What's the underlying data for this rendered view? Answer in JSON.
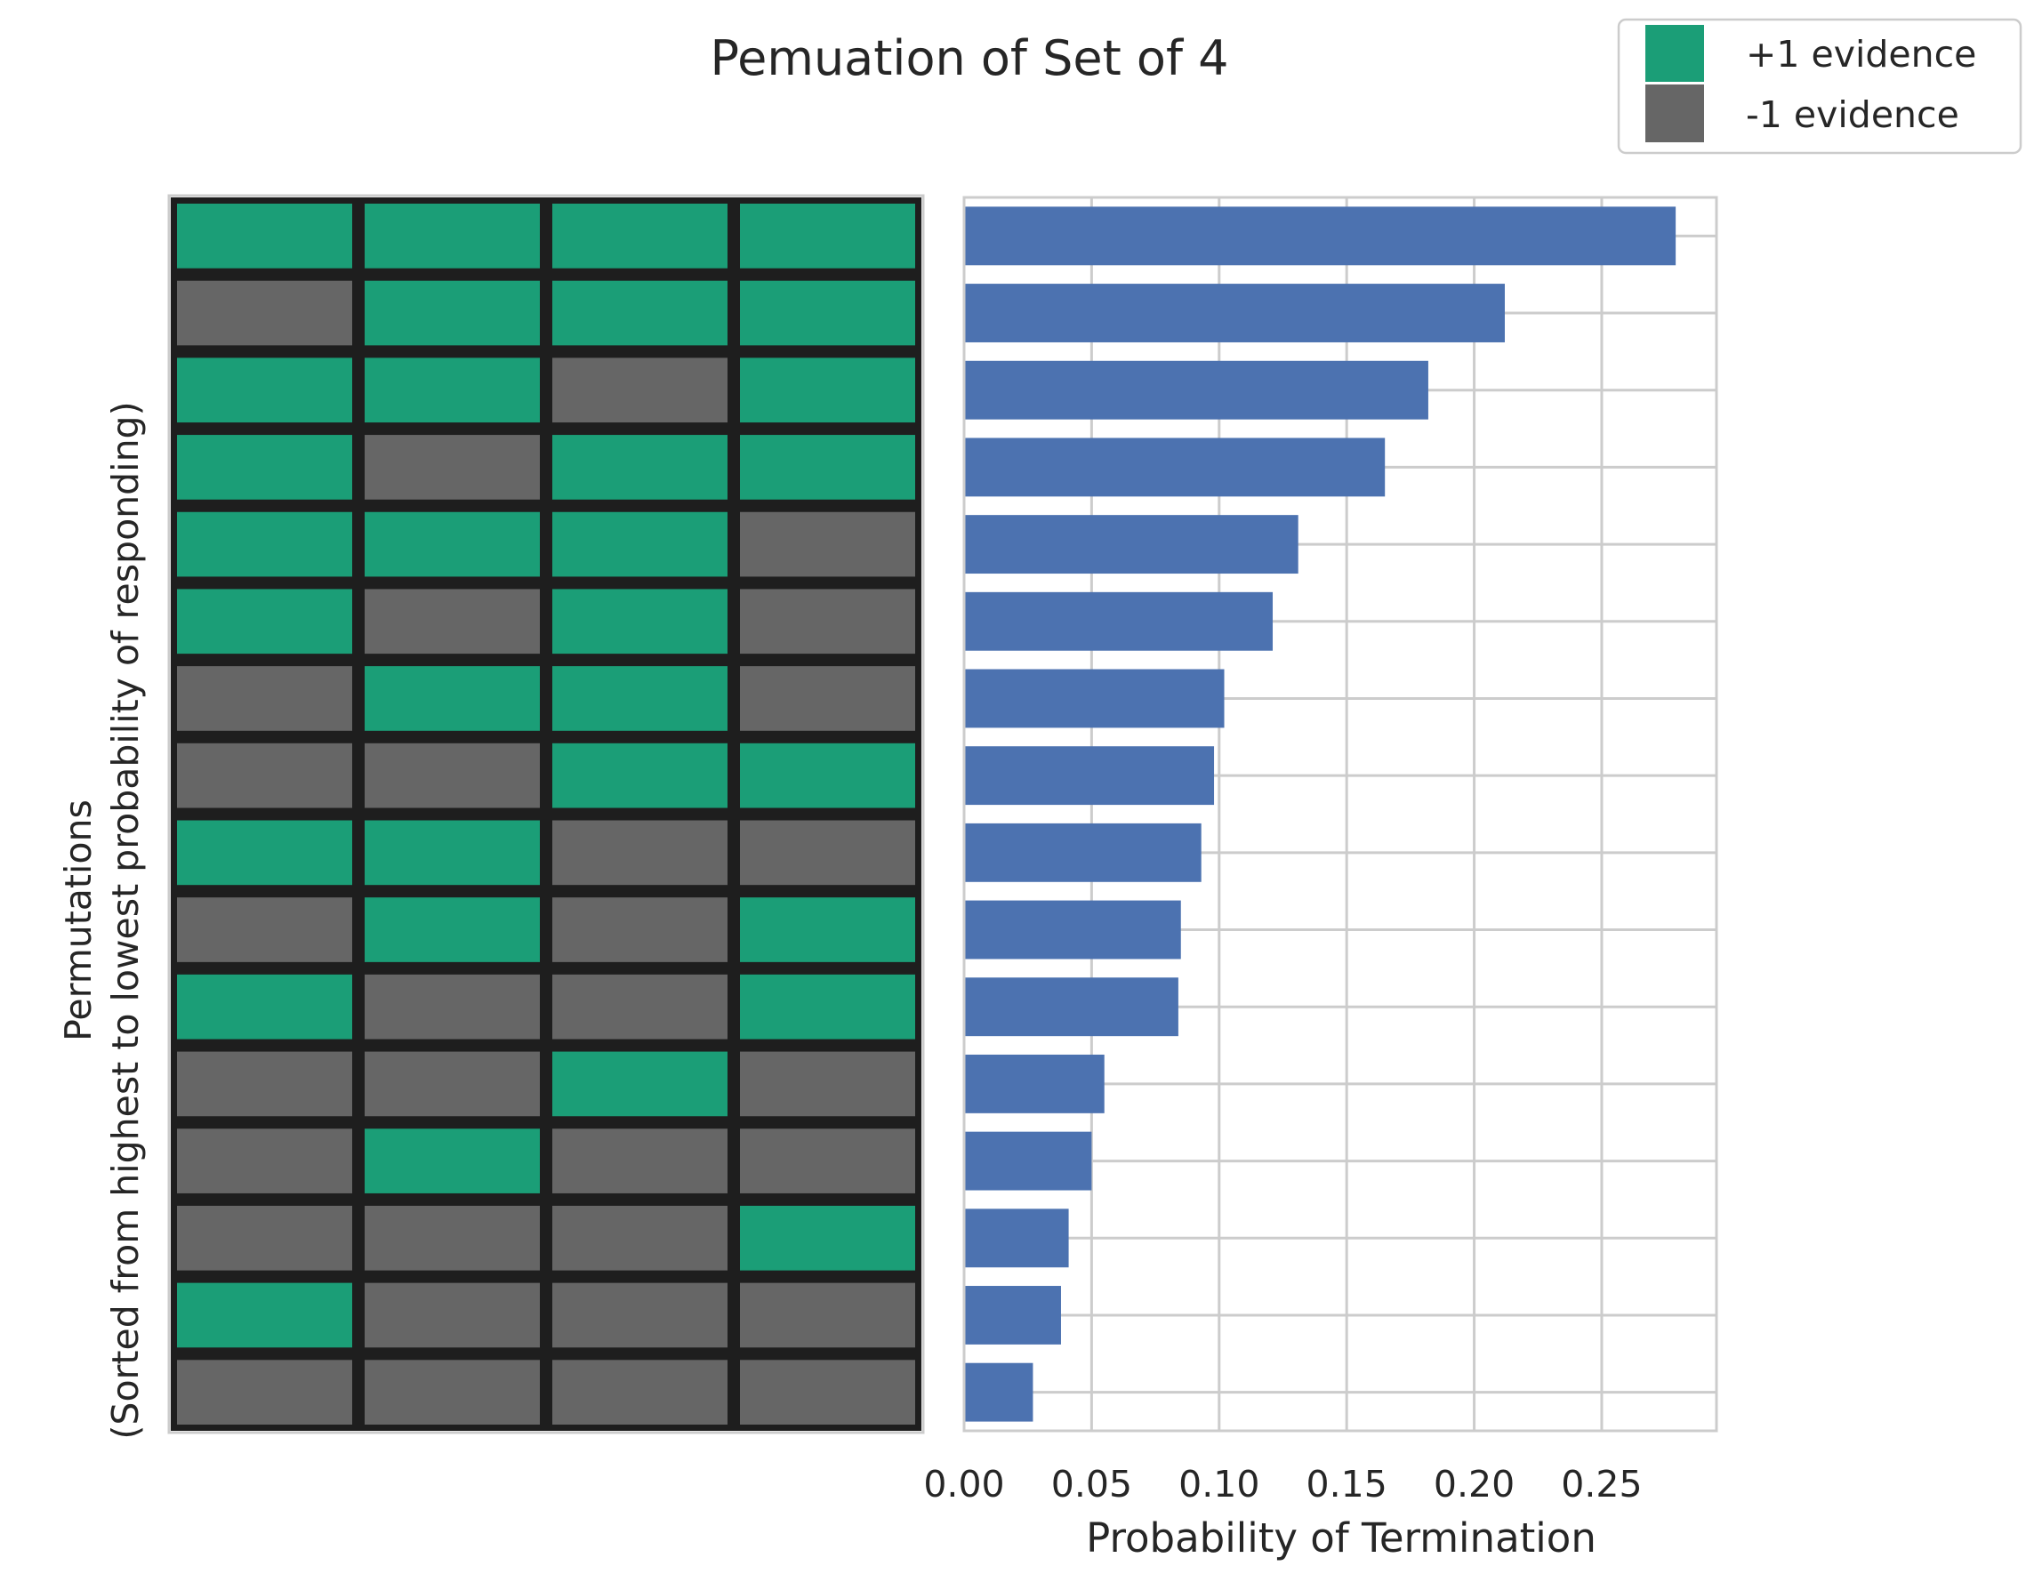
{
  "chart_data": [
    {
      "type": "heatmap",
      "title": "Pemuation of Set of 4",
      "ylabel": "Permutations\n(Sorted from highest to lowest probability of responding)",
      "ylabel_lines": [
        "Permutations",
        "(Sorted from highest to lowest probability of responding)"
      ],
      "columns": 4,
      "rows": [
        [
          1,
          1,
          1,
          1
        ],
        [
          -1,
          1,
          1,
          1
        ],
        [
          1,
          1,
          -1,
          1
        ],
        [
          1,
          -1,
          1,
          1
        ],
        [
          1,
          1,
          1,
          -1
        ],
        [
          1,
          -1,
          1,
          -1
        ],
        [
          -1,
          1,
          1,
          -1
        ],
        [
          -1,
          -1,
          1,
          1
        ],
        [
          1,
          1,
          -1,
          -1
        ],
        [
          -1,
          1,
          -1,
          1
        ],
        [
          1,
          -1,
          -1,
          1
        ],
        [
          -1,
          -1,
          1,
          -1
        ],
        [
          -1,
          1,
          -1,
          -1
        ],
        [
          -1,
          -1,
          -1,
          1
        ],
        [
          1,
          -1,
          -1,
          -1
        ],
        [
          -1,
          -1,
          -1,
          -1
        ]
      ],
      "legend": {
        "placement": "top-right",
        "entries": [
          {
            "label": "+1 evidence",
            "value": 1,
            "color": "#1b9e77"
          },
          {
            "label": "-1 evidence",
            "value": -1,
            "color": "#666666"
          }
        ]
      },
      "colors": {
        "positive": "#1b9e77",
        "negative": "#666666",
        "cell_border": "#1e1e1e"
      }
    },
    {
      "type": "bar",
      "orientation": "horizontal",
      "xlabel": "Probability of Termination",
      "xlim": [
        0,
        0.295
      ],
      "xticks": [
        "0.00",
        "0.05",
        "0.10",
        "0.15",
        "0.20",
        "0.25"
      ],
      "xtick_values": [
        0,
        0.05,
        0.1,
        0.15,
        0.2,
        0.25
      ],
      "values": [
        0.279,
        0.212,
        0.182,
        0.165,
        0.131,
        0.121,
        0.102,
        0.098,
        0.093,
        0.085,
        0.084,
        0.055,
        0.05,
        0.041,
        0.038,
        0.027
      ],
      "grid": true,
      "colors": {
        "bar": "#4c72b0",
        "grid": "#cccccc",
        "frame": "#cccccc"
      }
    }
  ]
}
